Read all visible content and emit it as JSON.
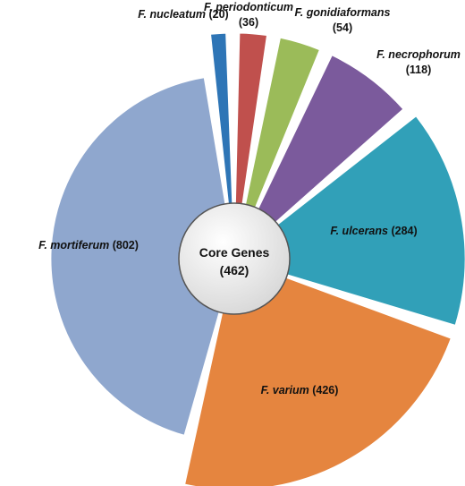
{
  "chart_data": {
    "type": "pie",
    "center": {
      "label": "Core Genes",
      "value": "(462)"
    },
    "slices": [
      {
        "name": "F. nucleatum",
        "count": "(20)",
        "value": 20,
        "color": "#2E75B6"
      },
      {
        "name": "F. periodonticum",
        "count": "(36)",
        "value": 36,
        "color": "#C0504D"
      },
      {
        "name": "F. gonidiaformans",
        "count": "(54)",
        "value": 54,
        "color": "#9BBB59"
      },
      {
        "name": "F. necrophorum",
        "count": "(118)",
        "value": 118,
        "color": "#7B5A9C"
      },
      {
        "name": "F. ulcerans",
        "count": "(284)",
        "value": 284,
        "color": "#31A0B8"
      },
      {
        "name": "F. varium",
        "count": "(426)",
        "value": 426,
        "color": "#E5853F"
      },
      {
        "name": "F. mortiferum",
        "count": "(802)",
        "value": 802,
        "color": "#8FA7CE"
      }
    ]
  }
}
